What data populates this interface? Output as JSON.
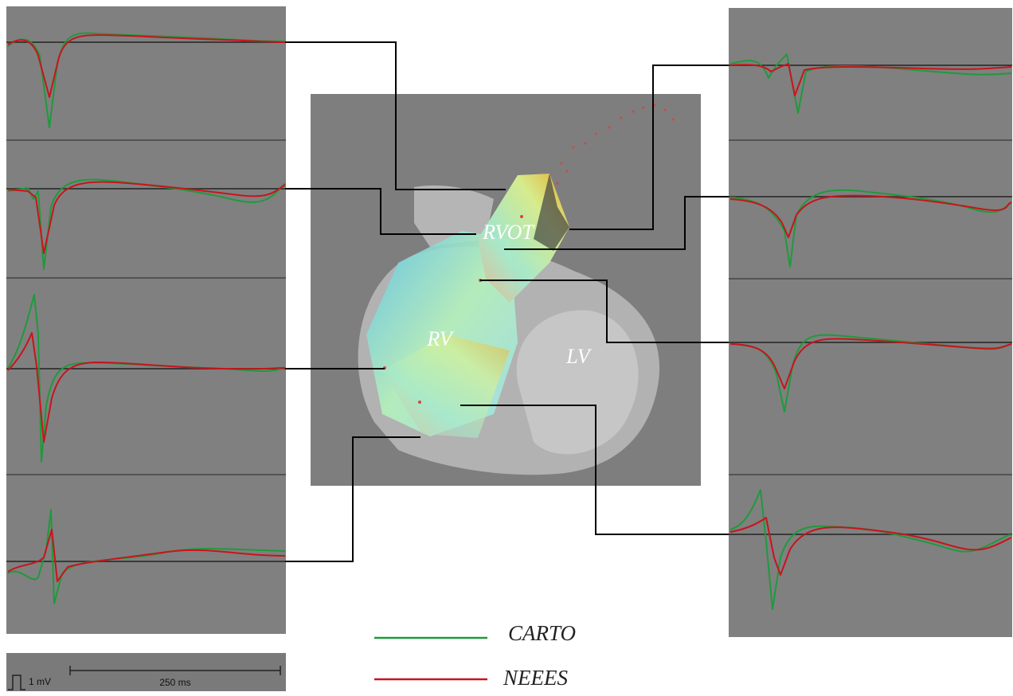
{
  "figure": {
    "labels": {
      "rvot": "RVOT",
      "rv": "RV",
      "lv": "LV"
    },
    "legend": [
      {
        "name": "CARTO",
        "color": "#1e9a3c"
      },
      {
        "name": "NEEES",
        "color": "#c8141c"
      }
    ],
    "scale": {
      "amplitude": "1 mV",
      "time": "250 ms"
    }
  }
}
